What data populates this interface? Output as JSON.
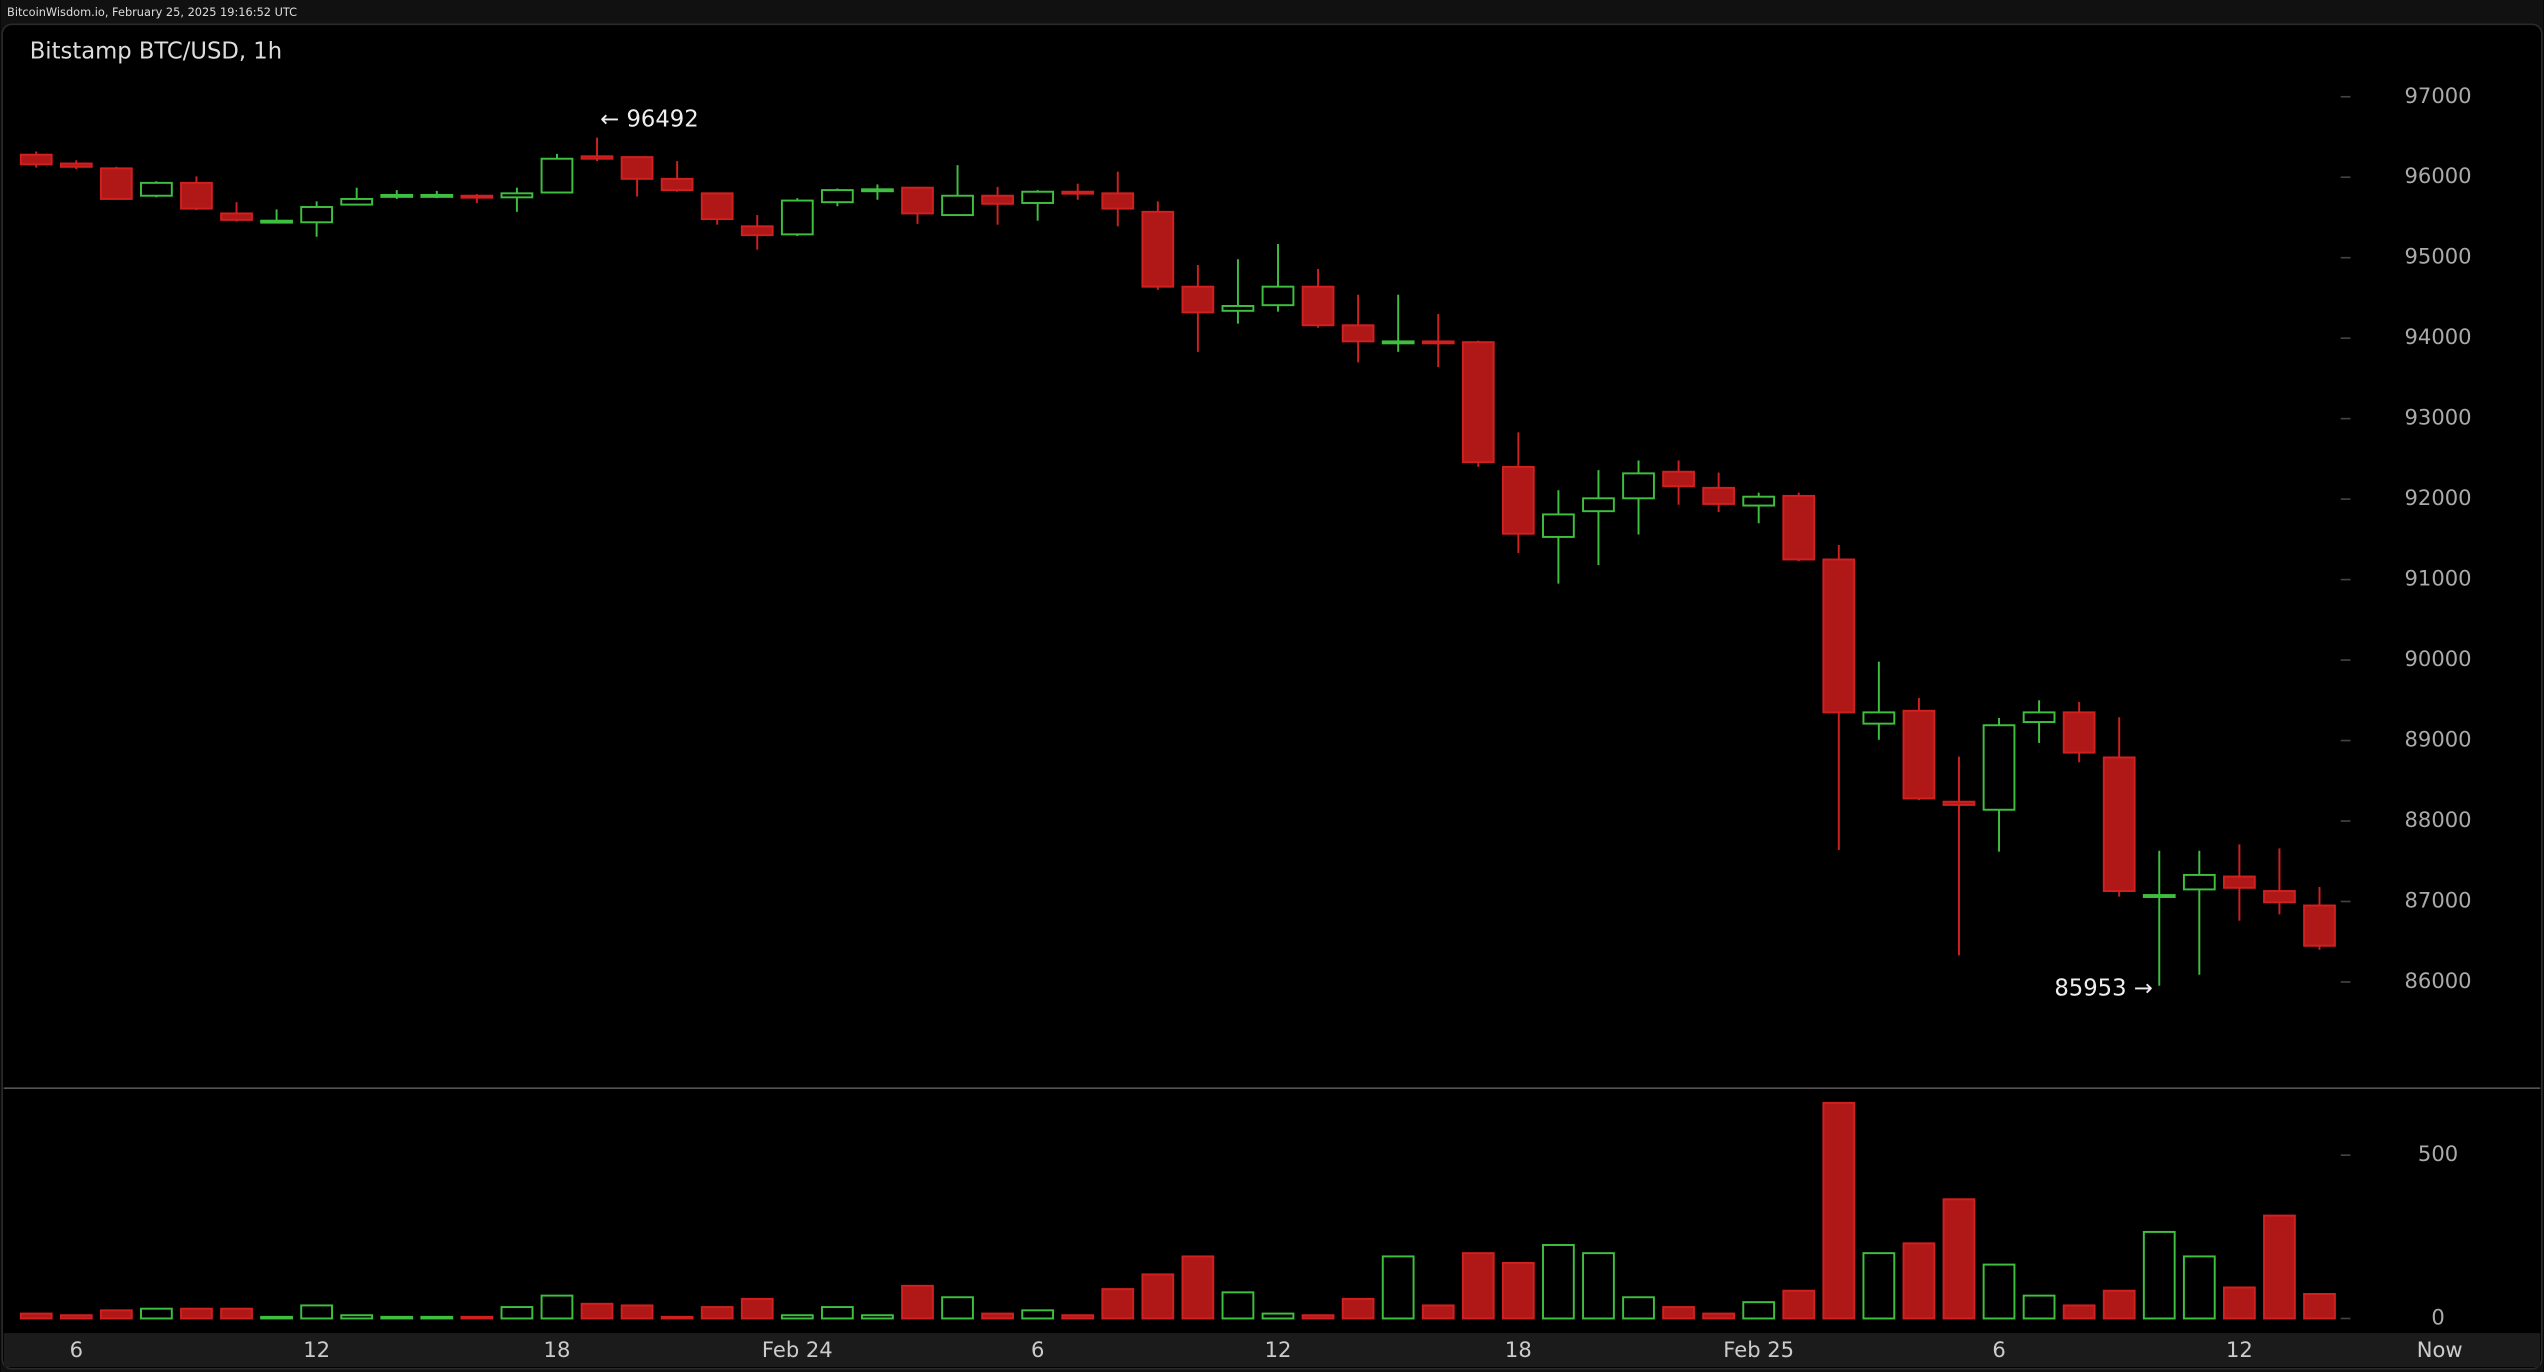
{
  "chart_data": {
    "type": "candlestick",
    "header": "BitcoinWisdom.io, February 25, 2025 19:16:52 UTC",
    "title": "Bitstamp BTC/USD, 1h",
    "up_color": "#3fbf3f",
    "down_color": "#b01818",
    "x": [
      0,
      1,
      2,
      3,
      4,
      5,
      6,
      7,
      8,
      9,
      10,
      11,
      12,
      13,
      14,
      15,
      16,
      17,
      18,
      19,
      20,
      21,
      22,
      23,
      24,
      25,
      26,
      27,
      28,
      29,
      30,
      31,
      32,
      33,
      34,
      35,
      36,
      37,
      38,
      39,
      40,
      41,
      42,
      43,
      44,
      45,
      46,
      47,
      48,
      49,
      50,
      51,
      52,
      53,
      54,
      55,
      56,
      57
    ],
    "open": [
      96280,
      96170,
      96110,
      95770,
      95930,
      95550,
      95440,
      95440,
      95660,
      95760,
      95770,
      95770,
      95750,
      95810,
      96260,
      96250,
      95980,
      95800,
      95390,
      95290,
      95690,
      95830,
      95870,
      95530,
      95770,
      95680,
      95820,
      95800,
      95570,
      94640,
      94340,
      94410,
      94640,
      94160,
      93940,
      93960,
      93950,
      92400,
      91530,
      91850,
      92010,
      92340,
      92140,
      91920,
      92040,
      91250,
      89210,
      89370,
      88240,
      88140,
      89230,
      89350,
      88790,
      87070,
      87150,
      87310,
      87130,
      86950
    ],
    "high": [
      96320,
      96210,
      96130,
      95950,
      96010,
      95690,
      95600,
      95700,
      95870,
      95840,
      95830,
      95790,
      95870,
      96290,
      96492,
      96260,
      96200,
      95810,
      95530,
      95740,
      95860,
      95910,
      95880,
      96150,
      95880,
      95840,
      95920,
      96070,
      95700,
      94910,
      94980,
      95170,
      94860,
      94540,
      94540,
      94300,
      93970,
      92830,
      92110,
      92360,
      92480,
      92480,
      92330,
      92080,
      92080,
      91430,
      89980,
      89530,
      88800,
      89280,
      89500,
      89480,
      89290,
      87630,
      87630,
      87710,
      87660,
      87180
    ],
    "low": [
      96120,
      96100,
      95720,
      95750,
      95590,
      95450,
      95430,
      95260,
      95650,
      95730,
      95740,
      95680,
      95570,
      95800,
      96200,
      95760,
      95820,
      95410,
      95100,
      95270,
      95640,
      95720,
      95420,
      95520,
      95410,
      95460,
      95720,
      95390,
      94600,
      93830,
      94180,
      94330,
      94130,
      93700,
      93830,
      93640,
      92400,
      91330,
      90950,
      91180,
      91560,
      91930,
      91840,
      91700,
      91230,
      87640,
      89010,
      88260,
      86330,
      87620,
      88970,
      88730,
      87060,
      85953,
      86090,
      86760,
      86840,
      86400
    ],
    "close": [
      96160,
      96130,
      95730,
      95930,
      95610,
      95470,
      95460,
      95630,
      95730,
      95780,
      95780,
      95750,
      95800,
      96230,
      96230,
      95980,
      95840,
      95480,
      95280,
      95710,
      95840,
      95850,
      95550,
      95770,
      95670,
      95820,
      95810,
      95610,
      94640,
      94320,
      94400,
      94640,
      94160,
      93960,
      93960,
      93950,
      92460,
      91570,
      91810,
      92010,
      92320,
      92160,
      91940,
      92030,
      91250,
      89350,
      89350,
      88280,
      88200,
      89190,
      89350,
      88850,
      87130,
      87080,
      87330,
      87170,
      86990,
      86450
    ],
    "volume": [
      15,
      10,
      25,
      30,
      30,
      30,
      5,
      40,
      10,
      5,
      5,
      5,
      35,
      70,
      45,
      40,
      5,
      35,
      60,
      10,
      35,
      10,
      100,
      65,
      15,
      25,
      10,
      90,
      135,
      190,
      80,
      15,
      10,
      60,
      190,
      40,
      200,
      170,
      225,
      200,
      65,
      35,
      15,
      50,
      85,
      660,
      200,
      230,
      365,
      165,
      70,
      40,
      85,
      265,
      190,
      95,
      315,
      75
    ],
    "ylim": [
      84700,
      97900
    ],
    "yticks": [
      86000,
      87000,
      88000,
      89000,
      90000,
      91000,
      92000,
      93000,
      94000,
      95000,
      96000,
      97000
    ],
    "volume_ylim": [
      0,
      700
    ],
    "volume_yticks": [
      0,
      500
    ],
    "xticks": [
      {
        "value": 1,
        "label": "6"
      },
      {
        "value": 7,
        "label": "12"
      },
      {
        "value": 13,
        "label": "18"
      },
      {
        "value": 19,
        "label": "Feb 24"
      },
      {
        "value": 25,
        "label": "6"
      },
      {
        "value": 31,
        "label": "12"
      },
      {
        "value": 37,
        "label": "18"
      },
      {
        "value": 43,
        "label": "Feb 25"
      },
      {
        "value": 49,
        "label": "6"
      },
      {
        "value": 55,
        "label": "12"
      },
      {
        "value": 60,
        "label": "Now"
      }
    ],
    "annotations": [
      {
        "text": "← 96492",
        "x": 14,
        "y": 96492
      },
      {
        "text": "85953 →",
        "x": 53,
        "y": 85953
      }
    ]
  }
}
